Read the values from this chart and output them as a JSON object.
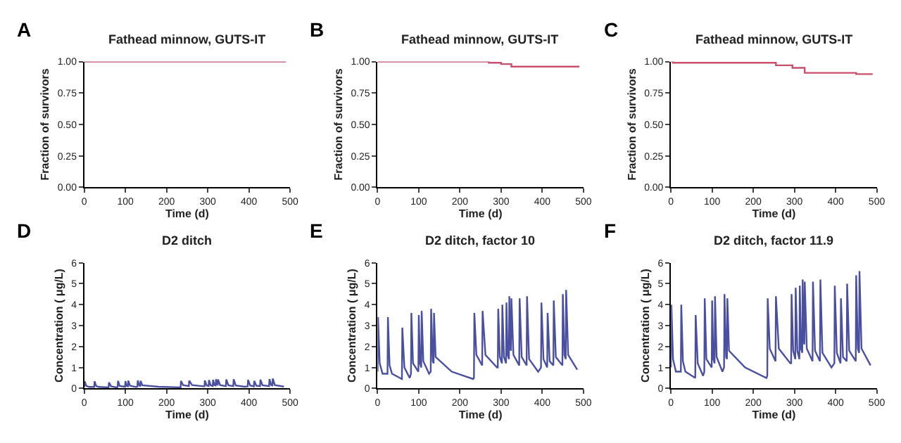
{
  "chart_data": [
    {
      "type": "step",
      "title": "Fathead minnow, GUTS-IT",
      "xlabel": "Time (d)",
      "ylabel": "Fraction of survivors",
      "annotations": [
        "A"
      ],
      "xlim": [
        0,
        500
      ],
      "xticks": [
        0,
        100,
        200,
        300,
        400,
        500
      ],
      "ylim": [
        0,
        1
      ],
      "yticks": [
        {
          "value": 0,
          "label": "0.00"
        },
        {
          "value": 0.25,
          "label": "0.25"
        },
        {
          "value": 0.5,
          "label": "0.50"
        },
        {
          "value": 0.75,
          "label": "0.75"
        },
        {
          "value": 1,
          "label": "1.00"
        }
      ],
      "series": [
        {
          "color": "#c8506e",
          "x": [
            0,
            490
          ],
          "values": [
            1.0,
            1.0
          ]
        }
      ]
    },
    {
      "type": "step",
      "title": "Fathead minnow, GUTS-IT",
      "xlabel": "Time (d)",
      "ylabel": "Fraction of survivors",
      "annotations": [
        "B"
      ],
      "xlim": [
        0,
        500
      ],
      "xticks": [
        0,
        100,
        200,
        300,
        400,
        500
      ],
      "ylim": [
        0,
        1
      ],
      "yticks": [
        {
          "value": 0,
          "label": "0.00"
        },
        {
          "value": 0.25,
          "label": "0.25"
        },
        {
          "value": 0.5,
          "label": "0.50"
        },
        {
          "value": 0.75,
          "label": "0.75"
        },
        {
          "value": 1,
          "label": "1.00"
        }
      ],
      "series": [
        {
          "color": "#c8506e",
          "x": [
            0,
            270,
            300,
            325,
            490
          ],
          "values": [
            1.0,
            0.99,
            0.98,
            0.96,
            0.96
          ]
        }
      ]
    },
    {
      "type": "step",
      "title": "Fathead minnow, GUTS-IT",
      "xlabel": "Time (d)",
      "ylabel": "Fraction of survivors",
      "annotations": [
        "C"
      ],
      "xlim": [
        0,
        500
      ],
      "xticks": [
        0,
        100,
        200,
        300,
        400,
        500
      ],
      "ylim": [
        0,
        1
      ],
      "yticks": [
        {
          "value": 0,
          "label": "0.00"
        },
        {
          "value": 0.25,
          "label": "0.25"
        },
        {
          "value": 0.5,
          "label": "0.50"
        },
        {
          "value": 0.75,
          "label": "0.75"
        },
        {
          "value": 1,
          "label": "1.00"
        }
      ],
      "series": [
        {
          "color": "#c8506e",
          "x": [
            0,
            5,
            255,
            295,
            325,
            450,
            490
          ],
          "values": [
            1.0,
            0.99,
            0.97,
            0.95,
            0.91,
            0.9,
            0.9
          ]
        }
      ]
    },
    {
      "type": "line",
      "title": "D2 ditch",
      "xlabel": "Time (d)",
      "ylabel": "Concentration ( μg/L)",
      "annotations": [
        "D"
      ],
      "xlim": [
        0,
        500
      ],
      "xticks": [
        0,
        100,
        200,
        300,
        400,
        500
      ],
      "ylim": [
        0,
        6
      ],
      "yticks": [
        0,
        1,
        2,
        3,
        4,
        5,
        6
      ],
      "series": [
        {
          "color": "#4a4fa0",
          "x": [
            0,
            1,
            5,
            12,
            24,
            25,
            29,
            35,
            59,
            60,
            65,
            78,
            81,
            82,
            86,
            99,
            100,
            103,
            106,
            107,
            111,
            125,
            129,
            130,
            134,
            136,
            137,
            141,
            180,
            232,
            234,
            235,
            240,
            254,
            255,
            262,
            290,
            292,
            293,
            297,
            302,
            303,
            307,
            312,
            313,
            316,
            319,
            320,
            322,
            324,
            325,
            330,
            344,
            345,
            350,
            362,
            363,
            368,
            390,
            397,
            398,
            403,
            412,
            413,
            418,
            427,
            428,
            433,
            449,
            450,
            454,
            457,
            458,
            463,
            485
          ],
          "values": [
            0.08,
            0.34,
            0.12,
            0.07,
            0.07,
            0.34,
            0.11,
            0.07,
            0.05,
            0.29,
            0.1,
            0.05,
            0.07,
            0.36,
            0.12,
            0.08,
            0.35,
            0.12,
            0.1,
            0.37,
            0.13,
            0.07,
            0.08,
            0.38,
            0.13,
            0.12,
            0.36,
            0.15,
            0.08,
            0.05,
            0.05,
            0.36,
            0.16,
            0.11,
            0.37,
            0.16,
            0.1,
            0.1,
            0.38,
            0.15,
            0.12,
            0.4,
            0.15,
            0.12,
            0.41,
            0.16,
            0.14,
            0.44,
            0.2,
            0.18,
            0.43,
            0.16,
            0.11,
            0.43,
            0.15,
            0.11,
            0.44,
            0.14,
            0.08,
            0.1,
            0.41,
            0.14,
            0.1,
            0.36,
            0.13,
            0.11,
            0.42,
            0.15,
            0.11,
            0.45,
            0.16,
            0.14,
            0.47,
            0.16,
            0.09
          ]
        }
      ]
    },
    {
      "type": "line",
      "title": "D2 ditch, factor 10",
      "xlabel": "Time (d)",
      "ylabel": "Concentration ( μg/L)",
      "annotations": [
        "E"
      ],
      "xlim": [
        0,
        500
      ],
      "xticks": [
        0,
        100,
        200,
        300,
        400,
        500
      ],
      "ylim": [
        0,
        6
      ],
      "yticks": [
        0,
        1,
        2,
        3,
        4,
        5,
        6
      ],
      "series": [
        {
          "color": "#4a4fa0",
          "x": [
            0,
            1,
            5,
            12,
            24,
            25,
            29,
            35,
            59,
            60,
            65,
            78,
            81,
            82,
            86,
            99,
            100,
            103,
            106,
            107,
            111,
            125,
            129,
            130,
            134,
            136,
            137,
            141,
            180,
            232,
            234,
            235,
            240,
            254,
            255,
            262,
            290,
            292,
            293,
            297,
            302,
            303,
            307,
            312,
            313,
            316,
            319,
            320,
            322,
            324,
            325,
            330,
            344,
            345,
            350,
            362,
            363,
            368,
            390,
            397,
            398,
            403,
            412,
            413,
            418,
            427,
            428,
            433,
            449,
            450,
            454,
            457,
            458,
            463,
            485
          ],
          "values": [
            0.8,
            3.4,
            1.2,
            0.7,
            0.7,
            3.4,
            1.1,
            0.7,
            0.45,
            2.9,
            1.0,
            0.5,
            0.7,
            3.6,
            1.2,
            0.8,
            3.5,
            1.2,
            1.0,
            3.7,
            1.3,
            0.7,
            0.8,
            3.8,
            1.3,
            1.2,
            3.6,
            1.5,
            0.8,
            0.45,
            0.5,
            3.6,
            1.6,
            1.1,
            3.7,
            1.6,
            1.0,
            1.0,
            3.8,
            1.5,
            1.2,
            4.0,
            1.5,
            1.2,
            4.1,
            1.6,
            1.4,
            4.4,
            2.0,
            1.8,
            4.3,
            1.6,
            1.1,
            4.3,
            1.5,
            1.1,
            4.4,
            1.4,
            0.8,
            1.0,
            4.1,
            1.4,
            1.0,
            3.6,
            1.3,
            1.1,
            4.2,
            1.5,
            1.1,
            4.5,
            1.6,
            1.4,
            4.7,
            1.6,
            0.9
          ]
        }
      ]
    },
    {
      "type": "line",
      "title": "D2 ditch, factor 11.9",
      "xlabel": "Time (d)",
      "ylabel": "Concentration ( μg/L)",
      "annotations": [
        "F"
      ],
      "xlim": [
        0,
        500
      ],
      "xticks": [
        0,
        100,
        200,
        300,
        400,
        500
      ],
      "ylim": [
        0,
        6
      ],
      "yticks": [
        0,
        1,
        2,
        3,
        4,
        5,
        6
      ],
      "series": [
        {
          "color": "#4a4fa0",
          "x": [
            0,
            1,
            5,
            12,
            24,
            25,
            29,
            35,
            59,
            60,
            65,
            78,
            81,
            82,
            86,
            99,
            100,
            103,
            106,
            107,
            111,
            125,
            129,
            130,
            134,
            136,
            137,
            141,
            180,
            232,
            234,
            235,
            240,
            254,
            255,
            262,
            290,
            292,
            293,
            297,
            302,
            303,
            307,
            312,
            313,
            316,
            319,
            320,
            322,
            324,
            325,
            330,
            344,
            345,
            350,
            362,
            363,
            368,
            390,
            397,
            398,
            403,
            412,
            413,
            418,
            427,
            428,
            433,
            449,
            450,
            454,
            457,
            458,
            463,
            485
          ],
          "values": [
            1.0,
            4.0,
            1.4,
            0.8,
            0.8,
            4.0,
            1.3,
            0.8,
            0.5,
            3.5,
            1.2,
            0.6,
            0.8,
            4.3,
            1.4,
            1.0,
            4.2,
            1.4,
            1.2,
            4.4,
            1.5,
            0.8,
            1.0,
            4.5,
            1.5,
            1.4,
            4.3,
            1.8,
            1.0,
            0.5,
            0.6,
            4.3,
            1.9,
            1.3,
            4.4,
            1.9,
            1.2,
            1.2,
            4.5,
            1.8,
            1.4,
            4.8,
            1.8,
            1.4,
            4.9,
            1.9,
            1.7,
            5.2,
            2.4,
            2.1,
            5.1,
            1.9,
            1.3,
            5.1,
            1.8,
            1.3,
            5.2,
            1.7,
            1.0,
            1.2,
            4.9,
            1.7,
            1.2,
            4.3,
            1.5,
            1.3,
            5.0,
            1.8,
            1.3,
            5.4,
            1.9,
            1.7,
            5.6,
            1.9,
            1.1
          ]
        }
      ]
    }
  ]
}
